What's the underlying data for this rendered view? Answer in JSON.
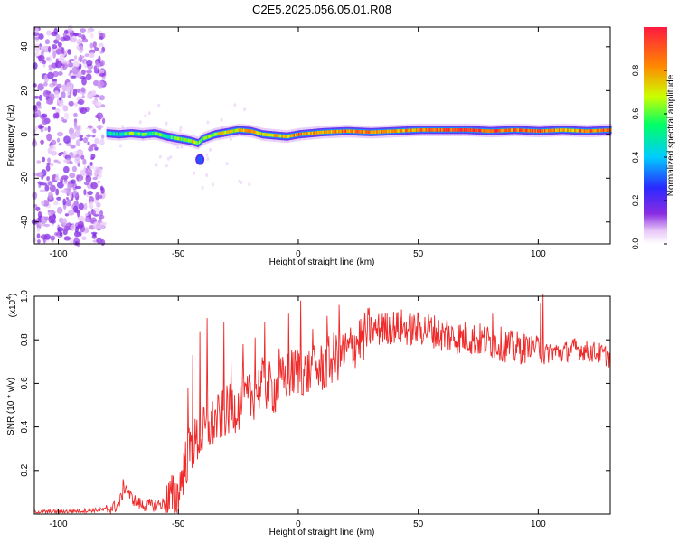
{
  "figure": {
    "title": "C2E5.2025.056.05.01.R08"
  },
  "colors": {
    "snr_line": "#ef2a2a",
    "background": "#ffffff",
    "axis": "#000000"
  },
  "chart_data": [
    {
      "type": "heatmap",
      "title": "",
      "xlabel": "Height of straight line (km)",
      "ylabel": "Frequency (Hz)",
      "xlim": [
        -110,
        130
      ],
      "ylim": [
        -50,
        49
      ],
      "x_ticks": [
        -100,
        -50,
        0,
        50,
        100
      ],
      "y_ticks": [
        -40,
        -20,
        0,
        20,
        40
      ],
      "colorbar": {
        "label": "Normalized spectral amplitude",
        "range": [
          0,
          1
        ],
        "ticks": [
          0.0,
          0.2,
          0.4,
          0.6,
          0.8
        ],
        "colormap": "rainbow (white-violet-blue-cyan-green-yellow-red)"
      },
      "ridge_line": {
        "description": "dominant frequency ridge",
        "x": [
          -80,
          -75,
          -70,
          -65,
          -60,
          -55,
          -50,
          -45,
          -42,
          -40,
          -35,
          -30,
          -25,
          -20,
          -15,
          -10,
          -5,
          0,
          10,
          20,
          30,
          40,
          50,
          60,
          70,
          80,
          90,
          100,
          110,
          120,
          130
        ],
        "y": [
          0.5,
          0,
          0.5,
          0,
          0.5,
          -1,
          -2,
          -3,
          -4,
          -2,
          0,
          1,
          2,
          1.5,
          0,
          -0.5,
          -1,
          0,
          1,
          1.5,
          1,
          1.5,
          2,
          2,
          2,
          1.5,
          2,
          1.5,
          2,
          1.5,
          2
        ],
        "amplitude": [
          0.5,
          0.45,
          0.6,
          0.55,
          0.55,
          0.5,
          0.6,
          0.7,
          0.55,
          0.6,
          0.65,
          0.7,
          0.75,
          0.8,
          0.7,
          0.75,
          0.8,
          0.85,
          0.8,
          0.85,
          0.8,
          0.8,
          0.85,
          0.9,
          0.9,
          0.9,
          0.85,
          0.9,
          0.8,
          0.85,
          0.85
        ]
      },
      "side_blob": {
        "x": [
          -42,
          -40
        ],
        "y": [
          -10,
          -13
        ],
        "amplitude": 0.3
      },
      "noise_region": {
        "xlim": [
          -110,
          -81
        ],
        "amplitude": 0.12
      }
    },
    {
      "type": "line",
      "title": "",
      "xlabel": "Height of straight line (km)",
      "ylabel": "SNR (10 * v/v)",
      "y_multiplier_label": "(x10^4)",
      "y_multiplier_text": "(x10",
      "y_multiplier_exp": "4",
      "xlim": [
        -110,
        130
      ],
      "ylim": [
        0,
        1.0
      ],
      "x_ticks": [
        -100,
        -50,
        0,
        50,
        100
      ],
      "y_ticks": [
        0.2,
        0.4,
        0.6,
        0.8,
        1.0
      ],
      "series": [
        {
          "color": "#ef2a2a",
          "x": [
            -110,
            -100,
            -90,
            -80,
            -75,
            -72,
            -70,
            -68,
            -65,
            -60,
            -55,
            -50,
            -48,
            -45,
            -42,
            -40,
            -38,
            -35,
            -30,
            -25,
            -20,
            -15,
            -10,
            -5,
            0,
            5,
            10,
            15,
            20,
            25,
            30,
            35,
            40,
            45,
            50,
            55,
            60,
            65,
            70,
            75,
            80,
            85,
            90,
            95,
            100,
            102,
            105,
            110,
            115,
            120,
            125,
            130
          ],
          "y": [
            0.01,
            0.01,
            0.015,
            0.02,
            0.04,
            0.13,
            0.08,
            0.06,
            0.04,
            0.04,
            0.05,
            0.09,
            0.2,
            0.3,
            0.34,
            0.37,
            0.39,
            0.42,
            0.47,
            0.5,
            0.53,
            0.6,
            0.57,
            0.63,
            0.66,
            0.65,
            0.67,
            0.72,
            0.74,
            0.8,
            0.84,
            0.85,
            0.86,
            0.85,
            0.85,
            0.85,
            0.82,
            0.81,
            0.81,
            0.8,
            0.79,
            0.78,
            0.76,
            0.77,
            0.77,
            0.72,
            0.75,
            0.74,
            0.76,
            0.75,
            0.74,
            0.72
          ]
        }
      ],
      "spikes": {
        "x": [
          -73,
          -46,
          -44,
          -41,
          -38,
          -31,
          -28,
          -23,
          -18,
          -14,
          -8,
          -4,
          1,
          6,
          12,
          17,
          35,
          43,
          62,
          81,
          101,
          102
        ],
        "y": [
          0.16,
          0.58,
          0.73,
          0.84,
          0.9,
          0.88,
          0.7,
          0.78,
          0.81,
          0.88,
          0.76,
          0.92,
          0.98,
          0.85,
          0.91,
          0.96,
          0.92,
          0.94,
          0.9,
          0.92,
          0.97,
          1.01
        ]
      }
    }
  ]
}
